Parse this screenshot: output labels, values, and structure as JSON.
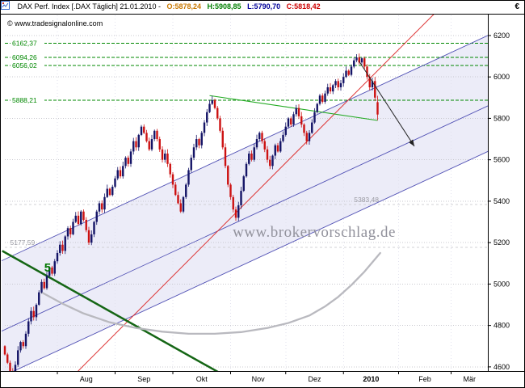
{
  "header": {
    "title": "DAX Perf. Index [.DAX  Täglich] 21.01.2010 -",
    "ohlc": {
      "o_label": "O:5878,24",
      "o_color": "#c87800",
      "h_label": "H:5908,85",
      "h_color": "#008000",
      "l_label": "L:5790,70",
      "l_color": "#000099",
      "c_label": "C:5818,42",
      "c_color": "#cc0000"
    },
    "currency": "€"
  },
  "copyright": "© www.tradesignalonline.com",
  "watermark": "www.brokervorschlag.de",
  "wave_label": {
    "text": "5",
    "i": 15,
    "price": 5060,
    "color": "#007700"
  },
  "axes": {
    "y_ticks": [
      4600,
      4800,
      5000,
      5200,
      5400,
      5600,
      5800,
      6000,
      6200
    ],
    "y_min_price": 4580,
    "y_max_price": 6270,
    "x_max_i": 184,
    "x_months": [
      {
        "label": "Aug",
        "start_i": 20,
        "bold": false
      },
      {
        "label": "Sep",
        "start_i": 42,
        "bold": false
      },
      {
        "label": "Okt",
        "start_i": 64,
        "bold": false
      },
      {
        "label": "Nov",
        "start_i": 86,
        "bold": false
      },
      {
        "label": "Dez",
        "start_i": 107,
        "bold": false
      },
      {
        "label": "2010",
        "start_i": 129,
        "bold": true
      },
      {
        "label": "Feb",
        "start_i": 150,
        "bold": false
      },
      {
        "label": "Mär",
        "start_i": 170,
        "bold": false
      }
    ]
  },
  "levels": {
    "green_color": "#008800",
    "gray_color": "#9a9aa2",
    "green_dashed": [
      {
        "label": "6162,37",
        "value": 6162.37
      },
      {
        "label": "6094,26",
        "value": 6094.26
      },
      {
        "label": "6056,02",
        "value": 6056.02
      },
      {
        "label": "5888,21",
        "value": 5888.21
      }
    ],
    "gray": [
      {
        "label": "5383,48",
        "value": 5383.48,
        "label_i": 133
      },
      {
        "label": "5177,59",
        "value": 5177.59,
        "label_i": 2
      }
    ]
  },
  "chart_data": {
    "type": "candlestick",
    "instrument": "DAX Perf. Index",
    "period": "Täglich",
    "last_date": "21.01.2010",
    "up_color": "#141466",
    "down_color": "#cc1111",
    "first_open": 4700,
    "closes": [
      4660,
      4620,
      4580,
      4570,
      4610,
      4680,
      4720,
      4700,
      4760,
      4820,
      4870,
      4840,
      4900,
      4960,
      5010,
      4980,
      5040,
      5080,
      5050,
      5110,
      5150,
      5190,
      5160,
      5230,
      5270,
      5240,
      5300,
      5330,
      5290,
      5350,
      5310,
      5260,
      5200,
      5240,
      5300,
      5350,
      5390,
      5360,
      5420,
      5460,
      5430,
      5470,
      5510,
      5550,
      5520,
      5570,
      5610,
      5580,
      5640,
      5690,
      5660,
      5720,
      5760,
      5730,
      5690,
      5650,
      5700,
      5740,
      5700,
      5650,
      5600,
      5630,
      5580,
      5530,
      5480,
      5430,
      5390,
      5350,
      5420,
      5480,
      5550,
      5610,
      5660,
      5700,
      5670,
      5730,
      5780,
      5830,
      5870,
      5888,
      5850,
      5800,
      5740,
      5660,
      5570,
      5480,
      5420,
      5360,
      5320,
      5380,
      5450,
      5520,
      5580,
      5630,
      5600,
      5660,
      5700,
      5730,
      5690,
      5650,
      5600,
      5570,
      5620,
      5670,
      5640,
      5690,
      5720,
      5760,
      5800,
      5770,
      5820,
      5850,
      5810,
      5770,
      5730,
      5690,
      5730,
      5780,
      5830,
      5870,
      5910,
      5880,
      5920,
      5950,
      5930,
      5960,
      5980,
      5950,
      5970,
      6000,
      6030,
      6010,
      6050,
      6080,
      6094,
      6070,
      6090,
      6050,
      6000,
      5950,
      5980,
      5900,
      5818
    ],
    "last_candle": {
      "o": 5878.24,
      "h": 5908.85,
      "l": 5790.7,
      "c": 5818.42
    },
    "ma_gray": [
      [
        14,
        4960
      ],
      [
        22,
        4905
      ],
      [
        30,
        4858
      ],
      [
        40,
        4815
      ],
      [
        50,
        4788
      ],
      [
        60,
        4770
      ],
      [
        70,
        4760
      ],
      [
        80,
        4760
      ],
      [
        90,
        4768
      ],
      [
        100,
        4788
      ],
      [
        108,
        4812
      ],
      [
        116,
        4848
      ],
      [
        122,
        4892
      ],
      [
        127,
        4938
      ],
      [
        132,
        4995
      ],
      [
        137,
        5060
      ],
      [
        140,
        5105
      ],
      [
        143,
        5150
      ]
    ],
    "lines": {
      "band": [
        [
          -2,
          4548
        ],
        [
          185,
          5646
        ],
        [
          185,
          6206
        ],
        [
          -2,
          5108
        ]
      ],
      "blue_channel": [
        [
          [
            -2,
            4548
          ],
          [
            185,
            5646
          ]
        ],
        [
          [
            -2,
            4768
          ],
          [
            185,
            5866
          ]
        ],
        [
          [
            -2,
            5108
          ],
          [
            185,
            6206
          ]
        ]
      ],
      "red_trend": [
        [
          24,
          4530
        ],
        [
          164,
          6310
        ]
      ],
      "green_thick_decline": [
        [
          -1,
          5160
        ],
        [
          82,
          4570
        ]
      ],
      "green_resistance": [
        [
          78,
          5910
        ],
        [
          142,
          5790
        ]
      ]
    },
    "arrow": {
      "from": [
        135,
        6075
      ],
      "to": [
        156,
        5665
      ]
    }
  }
}
